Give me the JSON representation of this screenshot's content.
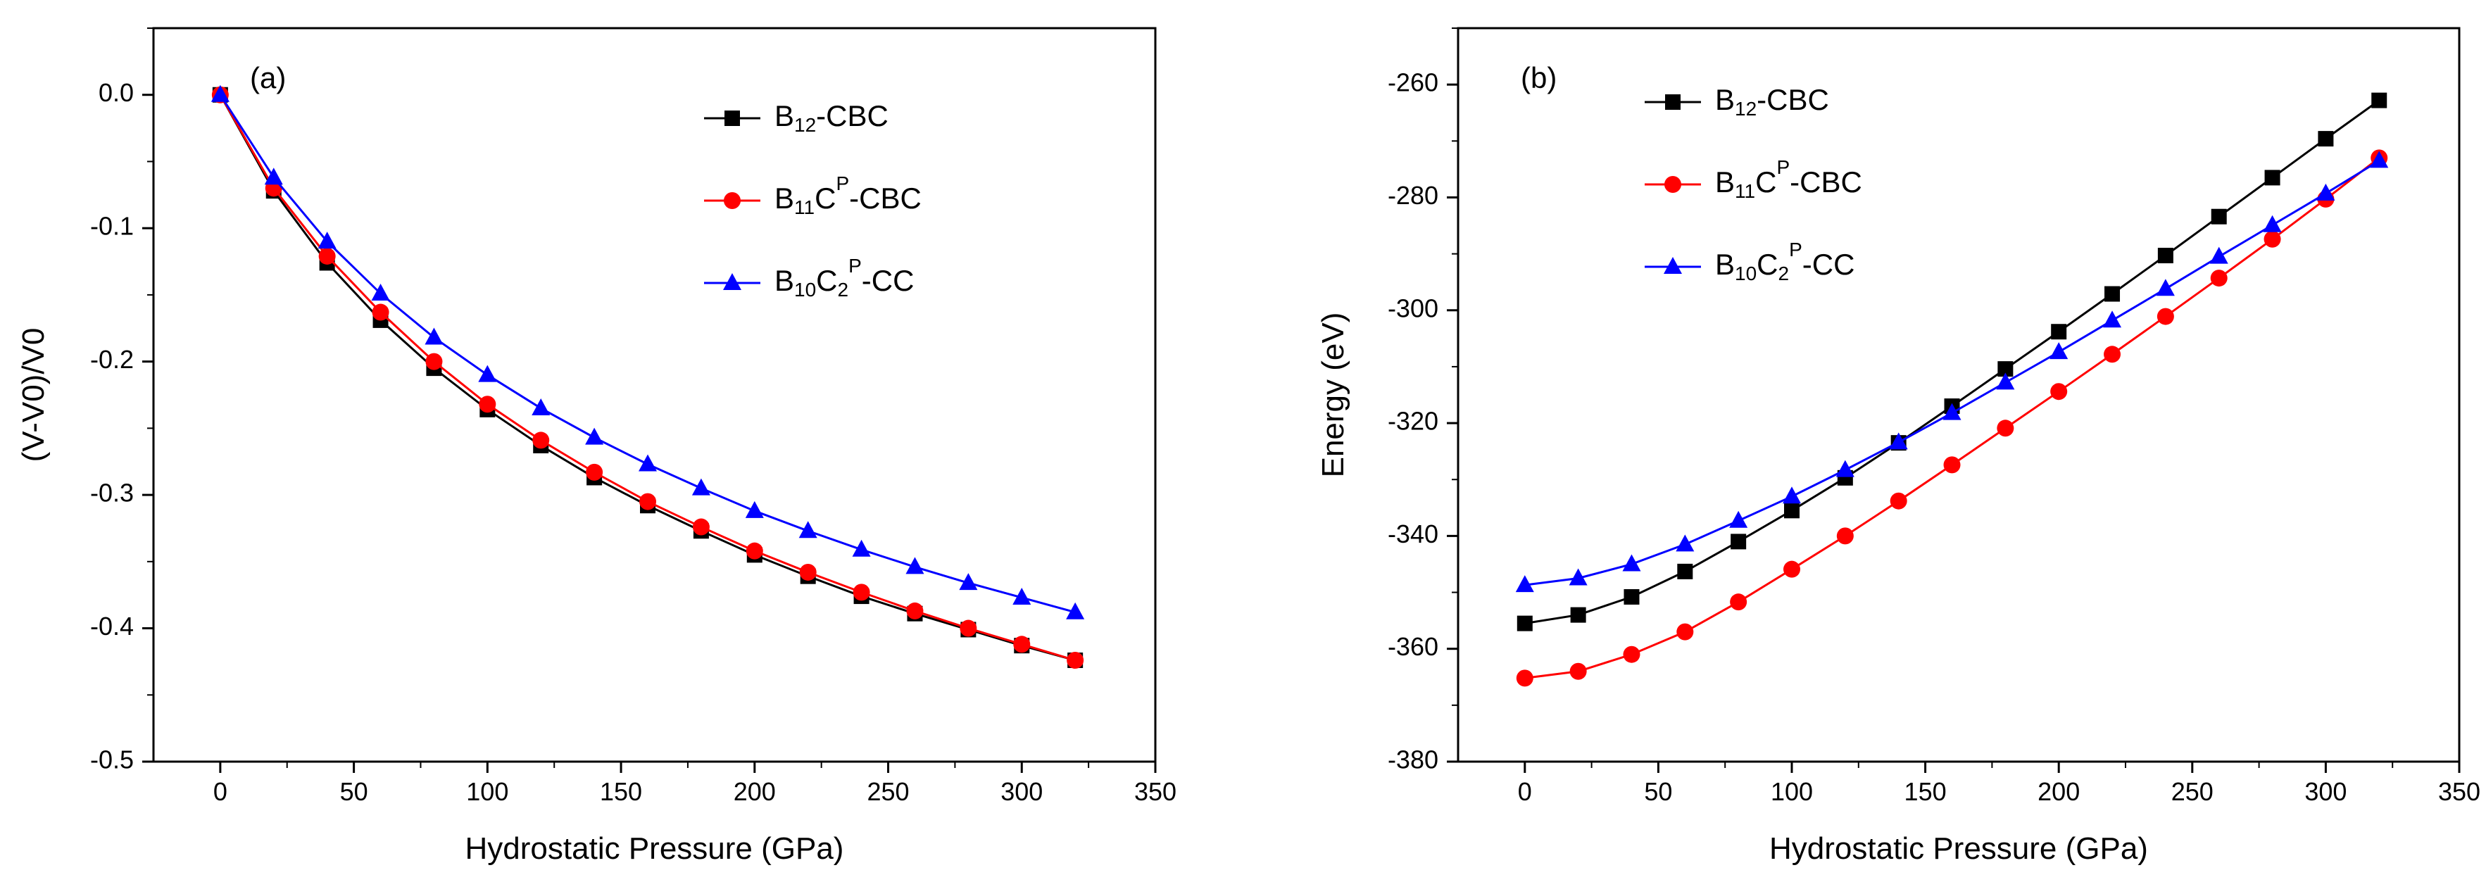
{
  "figure": {
    "title": ""
  },
  "series_styles": [
    {
      "key": "b12",
      "label_main": "B",
      "label_sub": "12",
      "label_rest": "-CBC",
      "color": "#000000",
      "marker": "square"
    },
    {
      "key": "b11",
      "label_main": "B",
      "label_sub": "11",
      "label_mid": "C",
      "label_sup": "P",
      "label_rest": "-CBC",
      "color": "#ff0000",
      "marker": "circle"
    },
    {
      "key": "b10",
      "label_main": "B",
      "label_sub": "10",
      "label_mid": "C",
      "label_sub2": "2",
      "label_sup": "P",
      "label_rest": "-CC",
      "color": "#0000ff",
      "marker": "triangle"
    }
  ],
  "chart_data": [
    {
      "type": "line",
      "panel_label": "(a)",
      "title": "",
      "xlabel": "Hydrostatic Pressure (GPa)",
      "ylabel": "(V-V0)/V0",
      "xlim": [
        -25,
        350
      ],
      "ylim": [
        -0.5,
        0.05
      ],
      "xticks": [
        0,
        50,
        100,
        150,
        200,
        250,
        300,
        350
      ],
      "yticks": [
        0.0,
        -0.1,
        -0.2,
        -0.3,
        -0.4,
        -0.5
      ],
      "ytick_labels": [
        "0.0",
        "-0.1",
        "-0.2",
        "-0.3",
        "-0.4",
        "-0.5"
      ],
      "legend_position": "top-right",
      "x": [
        0,
        20,
        40,
        60,
        80,
        100,
        120,
        140,
        160,
        180,
        200,
        220,
        240,
        260,
        280,
        300,
        320
      ],
      "series": [
        {
          "name": "B12-CBC",
          "values": [
            0.0,
            -0.072,
            -0.126,
            -0.169,
            -0.205,
            -0.236,
            -0.263,
            -0.287,
            -0.308,
            -0.327,
            -0.345,
            -0.361,
            -0.376,
            -0.389,
            -0.401,
            -0.413,
            -0.424
          ]
        },
        {
          "name": "B11CP-CBC",
          "values": [
            0.0,
            -0.07,
            -0.121,
            -0.163,
            -0.2,
            -0.232,
            -0.259,
            -0.283,
            -0.305,
            -0.324,
            -0.342,
            -0.358,
            -0.373,
            -0.387,
            -0.4,
            -0.412,
            -0.424
          ]
        },
        {
          "name": "B10C2P-CC",
          "values": [
            0.0,
            -0.062,
            -0.11,
            -0.149,
            -0.182,
            -0.21,
            -0.235,
            -0.257,
            -0.277,
            -0.295,
            -0.312,
            -0.327,
            -0.341,
            -0.354,
            -0.366,
            -0.377,
            -0.388
          ]
        }
      ]
    },
    {
      "type": "line",
      "panel_label": "(b)",
      "title": "",
      "xlabel": "Hydrostatic Pressure (GPa)",
      "ylabel": "Energy (eV)",
      "xlim": [
        -25,
        350
      ],
      "ylim": [
        -380,
        -250
      ],
      "xticks": [
        0,
        50,
        100,
        150,
        200,
        250,
        300,
        350
      ],
      "yticks": [
        -260,
        -280,
        -300,
        -320,
        -340,
        -360,
        -380
      ],
      "ytick_labels": [
        "-260",
        "-280",
        "-300",
        "-320",
        "-340",
        "-360",
        "-380"
      ],
      "legend_position": "top-left",
      "x": [
        0,
        20,
        40,
        60,
        80,
        100,
        120,
        140,
        160,
        180,
        200,
        220,
        240,
        260,
        280,
        300,
        320
      ],
      "series": [
        {
          "name": "B12-CBC",
          "values": [
            -355.5,
            -354.0,
            -350.8,
            -346.3,
            -341.0,
            -335.5,
            -329.7,
            -323.5,
            -317.0,
            -310.4,
            -303.8,
            -297.1,
            -290.3,
            -283.4,
            -276.5,
            -269.6,
            -262.8
          ]
        },
        {
          "name": "B11CP-CBC",
          "values": [
            -365.2,
            -364.0,
            -361.0,
            -357.0,
            -351.7,
            -345.9,
            -340.0,
            -333.8,
            -327.4,
            -320.9,
            -314.4,
            -307.8,
            -301.1,
            -294.3,
            -287.4,
            -280.3,
            -273.0
          ]
        },
        {
          "name": "B10C2P-CC",
          "values": [
            -348.7,
            -347.5,
            -345.0,
            -341.5,
            -337.3,
            -333.0,
            -328.3,
            -323.4,
            -318.2,
            -312.8,
            -307.4,
            -301.8,
            -296.2,
            -290.5,
            -284.9,
            -279.3,
            -273.5
          ]
        }
      ]
    }
  ]
}
